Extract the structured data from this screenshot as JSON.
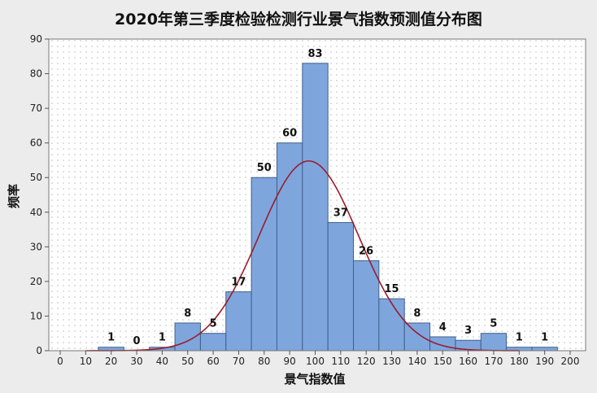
{
  "chart_data": {
    "type": "bar",
    "title": "2020年第三季度检验检测行业景气指数预测值分布图",
    "xlabel": "景气指数值",
    "ylabel": "频率",
    "xlim": [
      0,
      200
    ],
    "ylim": [
      0,
      90
    ],
    "xticks": [
      "0",
      "10",
      "20",
      "30",
      "40",
      "50",
      "60",
      "70",
      "80",
      "90",
      "100",
      "110",
      "120",
      "130",
      "140",
      "150",
      "160",
      "170",
      "180",
      "190",
      "200"
    ],
    "yticks": [
      "0",
      "10",
      "20",
      "30",
      "40",
      "50",
      "60",
      "70",
      "80",
      "90"
    ],
    "bin_width": 10,
    "bins": [
      {
        "x_start": 15,
        "x_end": 25,
        "value": 1,
        "label": "1"
      },
      {
        "x_start": 25,
        "x_end": 35,
        "value": 0,
        "label": "0"
      },
      {
        "x_start": 35,
        "x_end": 45,
        "value": 1,
        "label": "1"
      },
      {
        "x_start": 45,
        "x_end": 55,
        "value": 8,
        "label": "8"
      },
      {
        "x_start": 55,
        "x_end": 65,
        "value": 5,
        "label": "5"
      },
      {
        "x_start": 65,
        "x_end": 75,
        "value": 17,
        "label": "17"
      },
      {
        "x_start": 75,
        "x_end": 85,
        "value": 50,
        "label": "50"
      },
      {
        "x_start": 85,
        "x_end": 95,
        "value": 60,
        "label": "60"
      },
      {
        "x_start": 95,
        "x_end": 105,
        "value": 83,
        "label": "83"
      },
      {
        "x_start": 105,
        "x_end": 115,
        "value": 37,
        "label": "37"
      },
      {
        "x_start": 115,
        "x_end": 125,
        "value": 26,
        "label": "26"
      },
      {
        "x_start": 125,
        "x_end": 135,
        "value": 15,
        "label": "15"
      },
      {
        "x_start": 135,
        "x_end": 145,
        "value": 8,
        "label": "8"
      },
      {
        "x_start": 145,
        "x_end": 155,
        "value": 4,
        "label": "4"
      },
      {
        "x_start": 155,
        "x_end": 165,
        "value": 3,
        "label": "3"
      },
      {
        "x_start": 165,
        "x_end": 175,
        "value": 5,
        "label": "5"
      },
      {
        "x_start": 175,
        "x_end": 185,
        "value": 1,
        "label": "1"
      },
      {
        "x_start": 185,
        "x_end": 195,
        "value": 1,
        "label": "1"
      }
    ],
    "fit_curve": {
      "type": "normal",
      "mean": 97.5,
      "std": 19.5,
      "peak": 54.8,
      "x_range": [
        10,
        180
      ]
    },
    "grid": "dotted",
    "colors": {
      "bar_fill": "#7ea6dd",
      "bar_stroke": "#3f5f8c",
      "curve": "#9b1c2c",
      "plot_bg": "#ffffff",
      "grid_dot": "#b7b7b7"
    }
  }
}
